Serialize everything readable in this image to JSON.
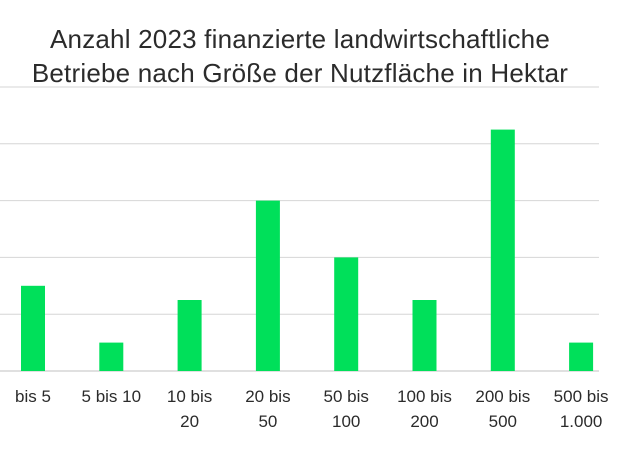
{
  "chart_data": {
    "type": "bar",
    "title_lines": [
      "Anzahl 2023 finanzierte landwirtschaftliche",
      "Betriebe nach Größe der Nutzfläche in Hektar"
    ],
    "categories": [
      [
        "bis 5"
      ],
      [
        "5 bis 10"
      ],
      [
        "10 bis",
        "20"
      ],
      [
        "20 bis",
        "50"
      ],
      [
        "50 bis",
        "100"
      ],
      [
        "100 bis",
        "200"
      ],
      [
        "200 bis",
        "500"
      ],
      [
        "500 bis",
        "1.000"
      ]
    ],
    "values": [
      3,
      1,
      2.5,
      6,
      4,
      2.5,
      8.5,
      1
    ],
    "ylim": [
      0,
      10
    ],
    "grid": true,
    "colors": {
      "bar": "#00e05a",
      "grid": "#d6d6d6",
      "text": "#2b2b2b"
    }
  }
}
